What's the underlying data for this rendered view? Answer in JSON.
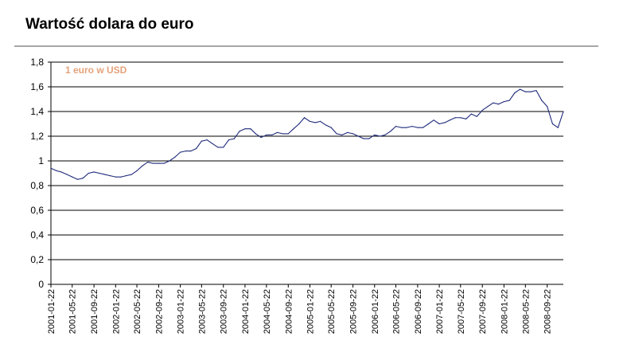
{
  "title": "Wartość dolara do euro",
  "colors": {
    "line": "#1f2a7a",
    "legend": "#e4a27a",
    "grid": "#000000",
    "rule": "#a6a6a6"
  },
  "chart_data": {
    "type": "line",
    "title": "Wartość dolara do euro",
    "xlabel": "",
    "ylabel": "",
    "ylim": [
      0,
      1.8
    ],
    "yticks": [
      "0",
      "0,2",
      "0,4",
      "0,6",
      "0,8",
      "1",
      "1,2",
      "1,4",
      "1,6",
      "1,8"
    ],
    "xticks": [
      "2001-01-22",
      "2001-05-22",
      "2001-09-22",
      "2002-01-22",
      "2002-05-22",
      "2002-09-22",
      "2003-01-22",
      "2003-05-22",
      "2003-09-22",
      "2004-01-22",
      "2004-05-22",
      "2004-09-22",
      "2005-01-22",
      "2005-05-22",
      "2005-09-22",
      "2006-01-22",
      "2006-05-22",
      "2006-09-22",
      "2007-01-22",
      "2007-05-22",
      "2007-09-22",
      "2008-01-22",
      "2008-05-22",
      "2008-09-22"
    ],
    "grid": true,
    "legend_position": "top-left",
    "series": [
      {
        "name": "1 euro w USD",
        "x": [
          "2001-01-22",
          "2001-02-22",
          "2001-03-22",
          "2001-04-22",
          "2001-05-22",
          "2001-06-22",
          "2001-07-22",
          "2001-08-22",
          "2001-09-22",
          "2001-10-22",
          "2001-11-22",
          "2001-12-22",
          "2002-01-22",
          "2002-02-22",
          "2002-03-22",
          "2002-04-22",
          "2002-05-22",
          "2002-06-22",
          "2002-07-22",
          "2002-08-22",
          "2002-09-22",
          "2002-10-22",
          "2002-11-22",
          "2002-12-22",
          "2003-01-22",
          "2003-02-22",
          "2003-03-22",
          "2003-04-22",
          "2003-05-22",
          "2003-06-22",
          "2003-07-22",
          "2003-08-22",
          "2003-09-22",
          "2003-10-22",
          "2003-11-22",
          "2003-12-22",
          "2004-01-22",
          "2004-02-22",
          "2004-03-22",
          "2004-04-22",
          "2004-05-22",
          "2004-06-22",
          "2004-07-22",
          "2004-08-22",
          "2004-09-22",
          "2004-10-22",
          "2004-11-22",
          "2004-12-22",
          "2005-01-22",
          "2005-02-22",
          "2005-03-22",
          "2005-04-22",
          "2005-05-22",
          "2005-06-22",
          "2005-07-22",
          "2005-08-22",
          "2005-09-22",
          "2005-10-22",
          "2005-11-22",
          "2005-12-22",
          "2006-01-22",
          "2006-02-22",
          "2006-03-22",
          "2006-04-22",
          "2006-05-22",
          "2006-06-22",
          "2006-07-22",
          "2006-08-22",
          "2006-09-22",
          "2006-10-22",
          "2006-11-22",
          "2006-12-22",
          "2007-01-22",
          "2007-02-22",
          "2007-03-22",
          "2007-04-22",
          "2007-05-22",
          "2007-06-22",
          "2007-07-22",
          "2007-08-22",
          "2007-09-22",
          "2007-10-22",
          "2007-11-22",
          "2007-12-22",
          "2008-01-22",
          "2008-02-22",
          "2008-03-22",
          "2008-04-22",
          "2008-05-22",
          "2008-06-22",
          "2008-07-22",
          "2008-08-22",
          "2008-09-22",
          "2008-10-22",
          "2008-11-22",
          "2008-12-22"
        ],
        "values": [
          0.94,
          0.92,
          0.91,
          0.89,
          0.87,
          0.85,
          0.86,
          0.9,
          0.91,
          0.9,
          0.89,
          0.88,
          0.87,
          0.87,
          0.88,
          0.89,
          0.92,
          0.96,
          0.99,
          0.98,
          0.98,
          0.98,
          1.0,
          1.03,
          1.07,
          1.08,
          1.08,
          1.1,
          1.16,
          1.17,
          1.14,
          1.11,
          1.11,
          1.17,
          1.18,
          1.24,
          1.26,
          1.26,
          1.22,
          1.19,
          1.21,
          1.21,
          1.23,
          1.22,
          1.22,
          1.26,
          1.3,
          1.35,
          1.32,
          1.31,
          1.32,
          1.29,
          1.27,
          1.22,
          1.21,
          1.23,
          1.22,
          1.2,
          1.18,
          1.18,
          1.21,
          1.2,
          1.21,
          1.24,
          1.28,
          1.27,
          1.27,
          1.28,
          1.27,
          1.27,
          1.3,
          1.33,
          1.3,
          1.31,
          1.33,
          1.35,
          1.35,
          1.34,
          1.38,
          1.36,
          1.41,
          1.44,
          1.47,
          1.46,
          1.48,
          1.49,
          1.55,
          1.58,
          1.56,
          1.56,
          1.57,
          1.49,
          1.44,
          1.3,
          1.27,
          1.4
        ]
      }
    ]
  }
}
